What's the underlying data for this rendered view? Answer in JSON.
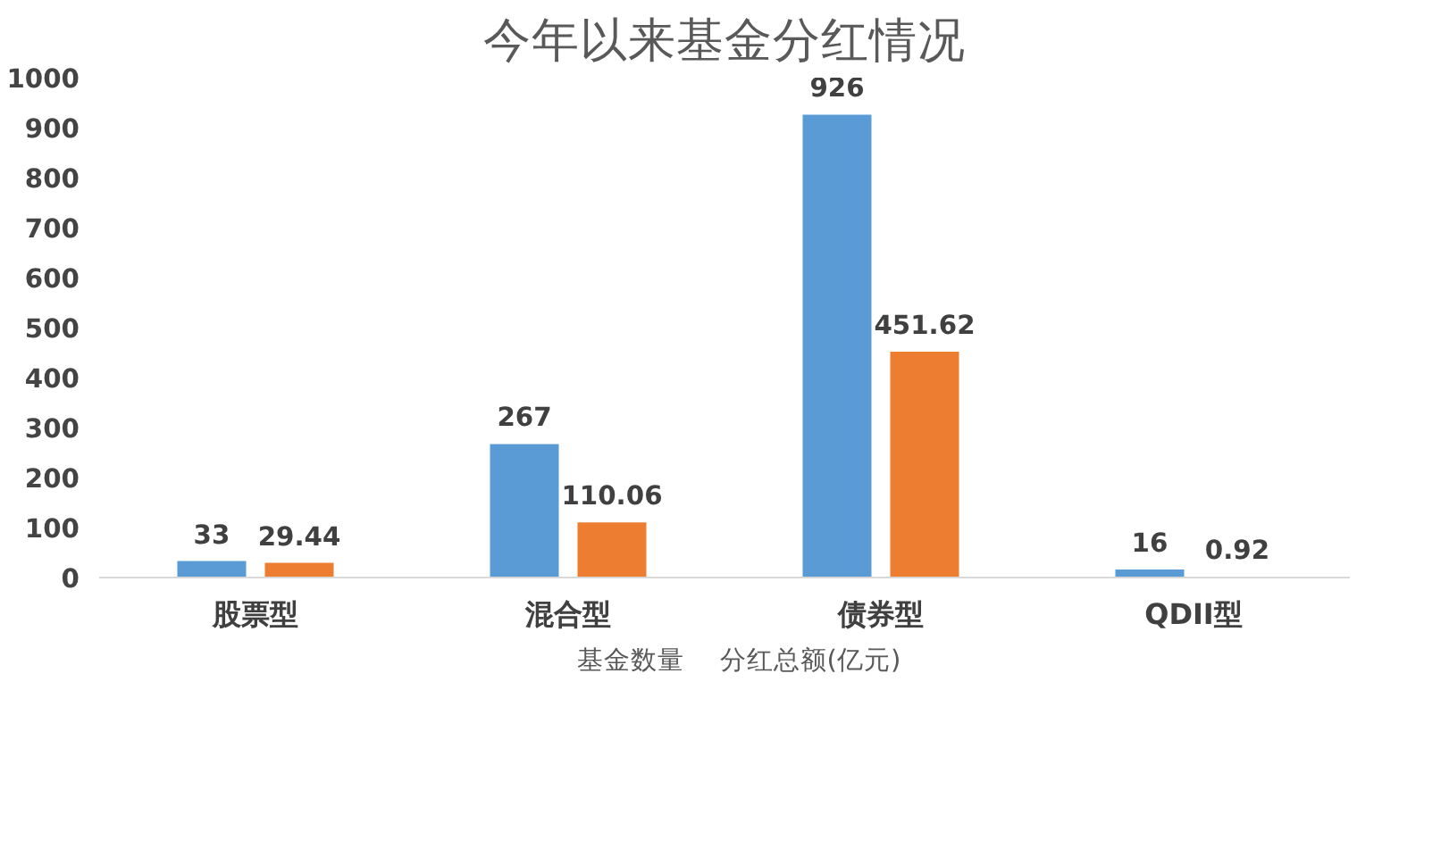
{
  "chart_data": {
    "type": "bar",
    "title": "今年以来基金分红情况",
    "categories": [
      "股票型",
      "混合型",
      "债券型",
      "QDII型"
    ],
    "series": [
      {
        "name": "基金数量",
        "color": "#5b9bd5",
        "values": [
          33,
          267,
          926,
          16
        ]
      },
      {
        "name": "分红总额(亿元)",
        "color": "#ed7d31",
        "values": [
          29.44,
          110.06,
          451.62,
          0.92
        ]
      }
    ],
    "ylim": [
      0,
      1000
    ],
    "yticks": [
      0,
      100,
      200,
      300,
      400,
      500,
      600,
      700,
      800,
      900,
      1000
    ],
    "data_labels": true,
    "legend": "bottom",
    "grid": false
  }
}
